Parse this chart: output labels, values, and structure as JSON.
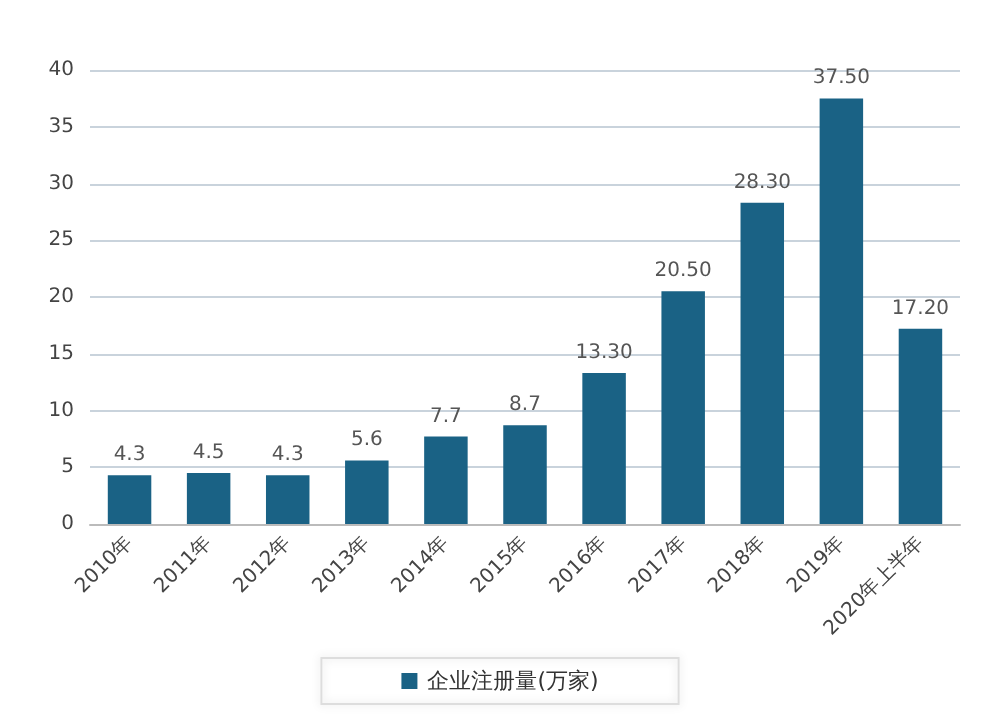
{
  "chart_data": {
    "type": "bar",
    "categories": [
      "2010年",
      "2011年",
      "2012年",
      "2013年",
      "2014年",
      "2015年",
      "2016年",
      "2017年",
      "2018年",
      "2019年",
      "2020年上半年"
    ],
    "series": [
      {
        "name": "企业注册量(万家)",
        "color": "#1a6285",
        "values": [
          4.3,
          4.5,
          4.3,
          5.6,
          7.7,
          8.7,
          13.3,
          20.5,
          28.3,
          37.5,
          17.2
        ],
        "value_labels": [
          "4.3",
          "4.5",
          "4.3",
          "5.6",
          "7.7",
          "8.7",
          "13.30",
          "20.50",
          "28.30",
          "37.50",
          "17.20"
        ]
      }
    ],
    "ylim": [
      0,
      40
    ],
    "yticks": [
      0,
      5,
      10,
      15,
      20,
      25,
      30,
      35,
      40
    ],
    "grid": "y",
    "legend": "bottom"
  }
}
